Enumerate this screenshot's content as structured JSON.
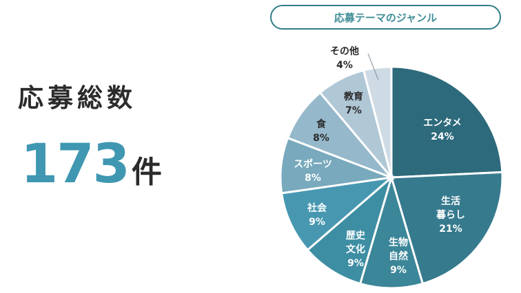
{
  "summary": {
    "total_label": "応募総数",
    "total_value": "173",
    "total_unit": "件"
  },
  "chart_data": {
    "type": "pie",
    "title": "応募テーマのジャンル",
    "slices": [
      {
        "label": [
          "エンタメ"
        ],
        "percent_label": "24%",
        "value": 24,
        "color": "#2d6a7b",
        "text_color": "#ffffff"
      },
      {
        "label": [
          "生活",
          "暮らし"
        ],
        "percent_label": "21%",
        "value": 21,
        "color": "#367a8e",
        "text_color": "#ffffff"
      },
      {
        "label": [
          "生物",
          "自然"
        ],
        "percent_label": "9%",
        "value": 9,
        "color": "#3b8698",
        "text_color": "#ffffff"
      },
      {
        "label": [
          "歴史",
          "文化"
        ],
        "percent_label": "9%",
        "value": 9,
        "color": "#3e8ea3",
        "text_color": "#ffffff"
      },
      {
        "label": [
          "社会"
        ],
        "percent_label": "9%",
        "value": 9,
        "color": "#4797b1",
        "text_color": "#ffffff"
      },
      {
        "label": [
          "スポーツ"
        ],
        "percent_label": "8%",
        "value": 8,
        "color": "#78a9bd",
        "text_color": "#ffffff"
      },
      {
        "label": [
          "食"
        ],
        "percent_label": "8%",
        "value": 8,
        "color": "#96b8cb",
        "text_color": "#2a2a2a"
      },
      {
        "label": [
          "教育"
        ],
        "percent_label": "7%",
        "value": 7,
        "color": "#b0c7d6",
        "text_color": "#2a2a2a"
      },
      {
        "label": [
          "その他"
        ],
        "percent_label": "4%",
        "value": 4,
        "color": "#cfdbe4",
        "text_color": "#2a2a2a"
      }
    ]
  }
}
